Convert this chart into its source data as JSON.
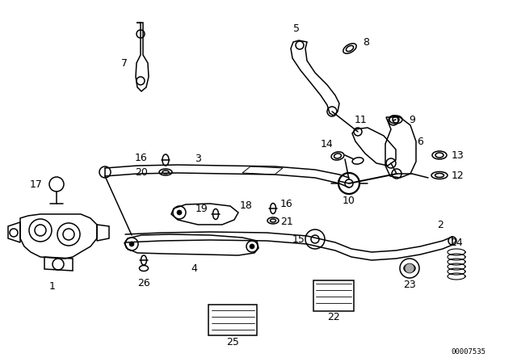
{
  "background_color": "#ffffff",
  "part_number": "00007535",
  "fig_width": 6.4,
  "fig_height": 4.48,
  "dpi": 100
}
